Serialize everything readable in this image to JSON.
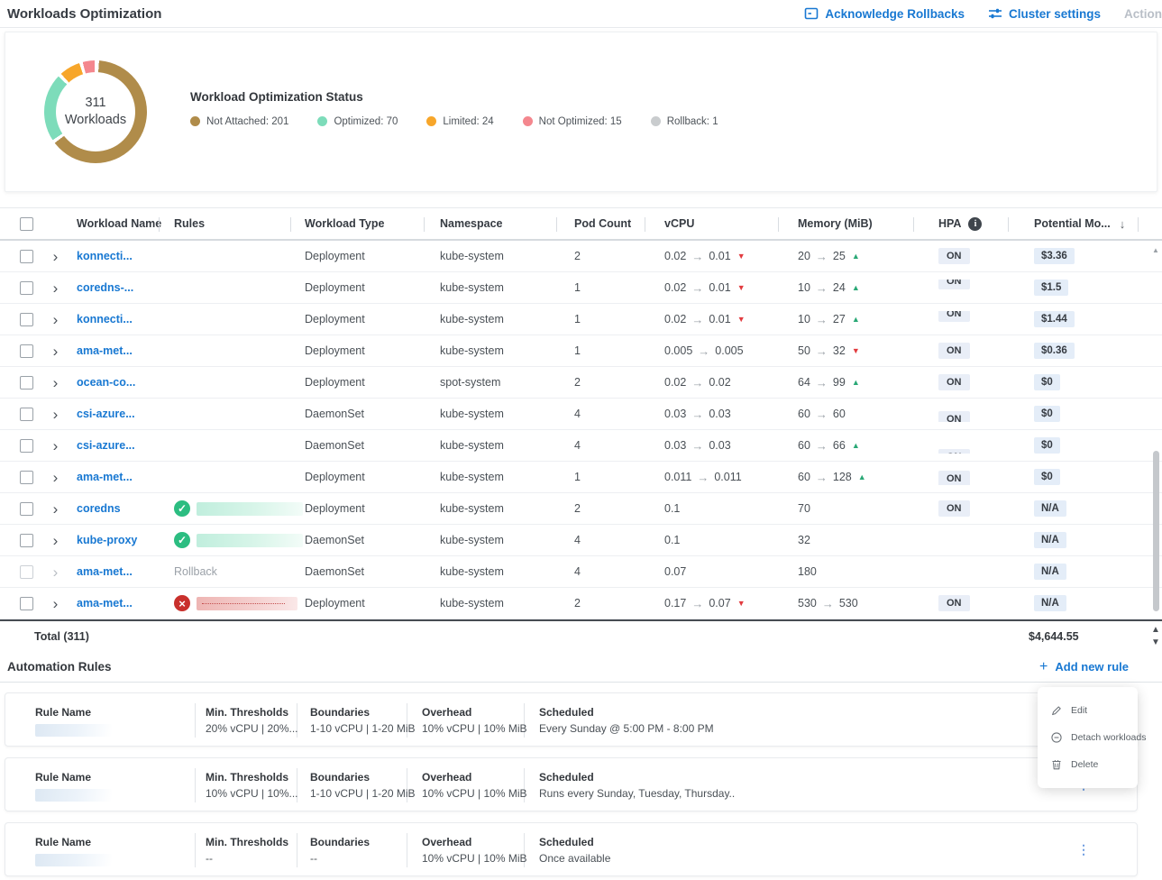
{
  "header": {
    "title": "Workloads Optimization",
    "actions": [
      {
        "label": "Acknowledge Rollbacks",
        "icon": "acknowledge-rollbacks-icon"
      },
      {
        "label": "Cluster settings",
        "icon": "sliders-icon"
      },
      {
        "label": "Action",
        "icon": "none"
      }
    ]
  },
  "summary": {
    "total_number": "311",
    "total_label": "Workloads",
    "legend_title": "Workload Optimization Status",
    "legend": [
      {
        "label": "Not Attached: 201",
        "value": 201,
        "color": "#b08c4a"
      },
      {
        "label": "Optimized: 70",
        "value": 70,
        "color": "#7ddcba"
      },
      {
        "label": "Limited: 24",
        "value": 24,
        "color": "#f7a62a"
      },
      {
        "label": "Not Optimized: 15",
        "value": 15,
        "color": "#f4878e"
      },
      {
        "label": "Rollback: 1",
        "value": 1,
        "color": "#c9ccce"
      }
    ]
  },
  "table": {
    "columns": [
      "Workload Name",
      "Rules",
      "Workload Type",
      "Namespace",
      "Pod Count",
      "vCPU",
      "Memory (MiB)",
      "HPA",
      "Potential Mo..."
    ],
    "rows": [
      {
        "name": "konnecti...",
        "rule": "none",
        "type": "Deployment",
        "namespace": "kube-system",
        "pods": "2",
        "vcpu": {
          "from": "0.02",
          "to": "0.01",
          "trend": "down"
        },
        "memory": {
          "from": "20",
          "to": "25",
          "trend": "up"
        },
        "hpa": "ON",
        "potential": "$3.36"
      },
      {
        "name": "coredns-...",
        "rule": "none",
        "type": "Deployment",
        "namespace": "kube-system",
        "pods": "1",
        "vcpu": {
          "from": "0.02",
          "to": "0.01",
          "trend": "down"
        },
        "memory": {
          "from": "10",
          "to": "24",
          "trend": "up"
        },
        "hpa": "ON",
        "potential": "$1.5"
      },
      {
        "name": "konnecti...",
        "rule": "none",
        "type": "Deployment",
        "namespace": "kube-system",
        "pods": "1",
        "vcpu": {
          "from": "0.02",
          "to": "0.01",
          "trend": "down"
        },
        "memory": {
          "from": "10",
          "to": "27",
          "trend": "up"
        },
        "hpa": "ON",
        "potential": "$1.44"
      },
      {
        "name": "ama-met...",
        "rule": "none",
        "type": "Deployment",
        "namespace": "kube-system",
        "pods": "1",
        "vcpu": {
          "from": "0.005",
          "to": "0.005"
        },
        "memory": {
          "from": "50",
          "to": "32",
          "trend": "down"
        },
        "hpa": "ON",
        "potential": "$0.36"
      },
      {
        "name": "ocean-co...",
        "rule": "none",
        "type": "Deployment",
        "namespace": "spot-system",
        "pods": "2",
        "vcpu": {
          "from": "0.02",
          "to": "0.02"
        },
        "memory": {
          "from": "64",
          "to": "99",
          "trend": "up"
        },
        "hpa": "ON",
        "potential": "$0"
      },
      {
        "name": "csi-azure...",
        "rule": "none",
        "type": "DaemonSet",
        "namespace": "kube-system",
        "pods": "4",
        "vcpu": {
          "from": "0.03",
          "to": "0.03"
        },
        "memory": {
          "from": "60",
          "to": "60"
        },
        "hpa": "ON",
        "potential": "$0"
      },
      {
        "name": "csi-azure...",
        "rule": "none",
        "type": "DaemonSet",
        "namespace": "kube-system",
        "pods": "4",
        "vcpu": {
          "from": "0.03",
          "to": "0.03"
        },
        "memory": {
          "from": "60",
          "to": "66",
          "trend": "up"
        },
        "hpa": "ON",
        "potential": "$0"
      },
      {
        "name": "ama-met...",
        "rule": "none",
        "type": "Deployment",
        "namespace": "kube-system",
        "pods": "1",
        "vcpu": {
          "from": "0.011",
          "to": "0.011"
        },
        "memory": {
          "from": "60",
          "to": "128",
          "trend": "up"
        },
        "hpa": "ON",
        "potential": "$0"
      },
      {
        "name": "coredns",
        "rule": "ok",
        "type": "Deployment",
        "namespace": "kube-system",
        "pods": "2",
        "vcpu": {
          "from": "0.1"
        },
        "memory": {
          "from": "70"
        },
        "hpa": "ON",
        "potential": "N/A"
      },
      {
        "name": "kube-proxy",
        "rule": "ok",
        "type": "DaemonSet",
        "namespace": "kube-system",
        "pods": "4",
        "vcpu": {
          "from": "0.1"
        },
        "memory": {
          "from": "32"
        },
        "hpa": "",
        "potential": "N/A"
      },
      {
        "name": "ama-met...",
        "rule": "rollback",
        "rules_text": "Rollback",
        "type": "DaemonSet",
        "namespace": "kube-system",
        "pods": "4",
        "vcpu": {
          "from": "0.07"
        },
        "memory": {
          "from": "180"
        },
        "hpa": "",
        "potential": "N/A",
        "dim": true
      },
      {
        "name": "ama-met...",
        "rule": "error",
        "type": "Deployment",
        "namespace": "kube-system",
        "pods": "2",
        "vcpu": {
          "from": "0.17",
          "to": "0.07",
          "trend": "down"
        },
        "memory": {
          "from": "530",
          "to": "530"
        },
        "hpa": "ON",
        "potential": "N/A"
      }
    ],
    "total_label": "Total (311)",
    "total_value": "$4,644.55"
  },
  "rules_section": {
    "title": "Automation Rules",
    "add_label": "Add new rule",
    "labels": {
      "name": "Rule Name",
      "min": "Min. Thresholds",
      "bound": "Boundaries",
      "over": "Overhead",
      "sched": "Scheduled"
    },
    "cards": [
      {
        "min": "20% vCPU | 20%...",
        "bound": "1-10 vCPU | 1-20 MiB",
        "over": "10% vCPU | 10% MiB",
        "sched": "Every Sunday @ 5:00 PM - 8:00 PM"
      },
      {
        "min": "10% vCPU | 10%...",
        "bound": "1-10 vCPU | 1-20 MiB",
        "over": "10% vCPU | 10% MiB",
        "sched": "Runs every Sunday, Tuesday, Thursday.."
      },
      {
        "min": "--",
        "bound": "--",
        "over": "10% vCPU | 10% MiB",
        "sched": "Once available"
      }
    ]
  },
  "context_menu": {
    "items": [
      {
        "label": "Edit",
        "icon": "pencil-icon"
      },
      {
        "label": "Detach workloads",
        "icon": "circle-minus-icon"
      },
      {
        "label": "Delete",
        "icon": "trash-icon"
      }
    ]
  },
  "colors": {
    "accent_blue": "#1878d2",
    "trend_up": "#2aa876",
    "trend_down": "#e23b3f",
    "rule_ok": "#2cbd81",
    "rule_error": "#c9302c"
  }
}
